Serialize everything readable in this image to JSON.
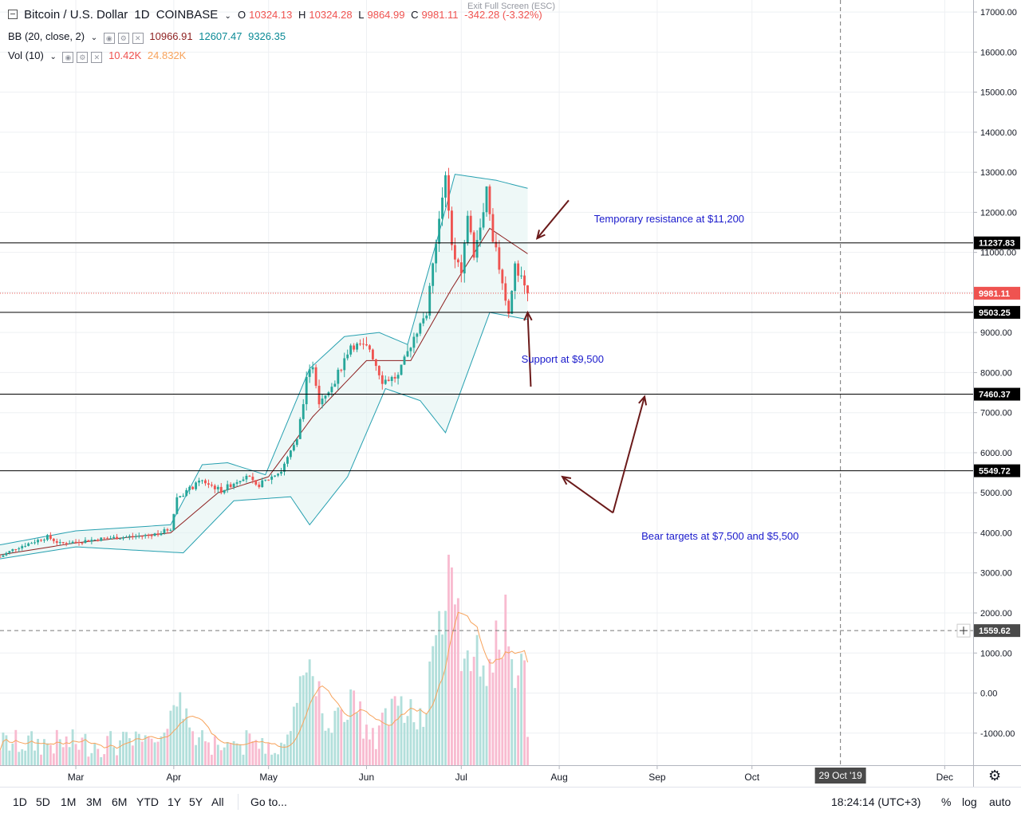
{
  "header": {
    "symbol_title": "Bitcoin / U.S. Dollar",
    "interval": "1D",
    "exchange": "COINBASE",
    "ohlc": [
      {
        "k": "O",
        "v": "10324.13"
      },
      {
        "k": "H",
        "v": "10324.28"
      },
      {
        "k": "L",
        "v": "9864.99"
      },
      {
        "k": "C",
        "v": "9981.11"
      }
    ],
    "change": "-342.28 (-3.32%)",
    "exit_fullscreen": "Exit Full Screen (ESC)"
  },
  "indicators": {
    "bb": {
      "name": "BB (20, close, 2)",
      "basis": "10966.91",
      "upper": "12607.47",
      "lower": "9326.35"
    },
    "vol": {
      "name": "Vol (10)",
      "value": "10.42K",
      "ma": "24.832K"
    }
  },
  "colors": {
    "up": "#26a69a",
    "down": "#ef5350",
    "up_vol": "#b2dfdb",
    "down_vol": "#f8bbd0",
    "bb_band": "#26a0b0",
    "bb_fill": "#e0f2f1",
    "bb_basis": "#8d1f1f",
    "vol_ma": "#f7a35c",
    "annotation": "#1a1acc",
    "arrow": "#6b1a1a"
  },
  "chart_data": {
    "type": "candlestick",
    "title": "Bitcoin / U.S. Dollar 1D COINBASE",
    "ylim": [
      -1800,
      17300
    ],
    "y_ticks": [
      17000,
      16000,
      15000,
      14000,
      13000,
      12000,
      11000,
      10000,
      9000,
      8000,
      7000,
      6000,
      5000,
      4000,
      3000,
      2000,
      1000,
      0,
      -1000
    ],
    "y_tick_labels": [
      "17000.00",
      "16000.00",
      "15000.00",
      "14000.00",
      "13000.00",
      "12000.00",
      "11000.00",
      "10000.00",
      "9000.00",
      "8000.00",
      "7000.00",
      "6000.00",
      "5000.00",
      "4000.00",
      "3000.00",
      "2000.00",
      "1000.00",
      "0.00",
      "-1000.00"
    ],
    "x_start": "2019-02-05",
    "x_end": "2019-12-10",
    "x_labels": [
      {
        "date": "2019-03-01",
        "label": "Mar"
      },
      {
        "date": "2019-04-01",
        "label": "Apr"
      },
      {
        "date": "2019-05-01",
        "label": "May"
      },
      {
        "date": "2019-06-01",
        "label": "Jun"
      },
      {
        "date": "2019-07-01",
        "label": "Jul"
      },
      {
        "date": "2019-08-01",
        "label": "Aug"
      },
      {
        "date": "2019-09-01",
        "label": "Sep"
      },
      {
        "date": "2019-10-01",
        "label": "Oct"
      },
      {
        "date": "2019-12-01",
        "label": "Dec"
      }
    ],
    "crosshair": {
      "date": "2019-10-29",
      "date_label": "29 Oct '19",
      "price": 1559.62,
      "price_label": "1559.62"
    },
    "price_marks": [
      {
        "value": 11237.83,
        "label": "11237.83"
      },
      {
        "value": 9503.25,
        "label": "9503.25"
      },
      {
        "value": 7460.37,
        "label": "7460.37"
      },
      {
        "value": 5549.72,
        "label": "5549.72"
      }
    ],
    "last_price": {
      "value": 9981.11,
      "label": "9981.11"
    },
    "annotations": [
      {
        "text": "Temporary resistance at $11,200",
        "date": "2019-08-12",
        "price": 11750
      },
      {
        "text": "Support at $9,500",
        "date": "2019-07-20",
        "price": 8250
      },
      {
        "text": "Bear targets at $7,500 and $5,500",
        "date": "2019-08-27",
        "price": 3830
      }
    ],
    "arrows": [
      {
        "from": [
          "2019-08-04",
          12300
        ],
        "to": [
          "2019-07-25",
          11350
        ]
      },
      {
        "from": [
          "2019-07-23",
          7650
        ],
        "to": [
          "2019-07-22",
          9500
        ]
      },
      {
        "from": [
          "2019-08-18",
          4500
        ],
        "to": [
          "2019-08-02",
          5400
        ]
      },
      {
        "from": [
          "2019-08-18",
          4500
        ],
        "to": [
          "2019-08-28",
          7400
        ]
      }
    ],
    "anchors": [
      {
        "date": "2019-02-05",
        "close": 3400
      },
      {
        "date": "2019-02-10",
        "close": 3620
      },
      {
        "date": "2019-02-20",
        "close": 3900
      },
      {
        "date": "2019-02-24",
        "close": 3730
      },
      {
        "date": "2019-03-10",
        "close": 3860
      },
      {
        "date": "2019-03-25",
        "close": 3940
      },
      {
        "date": "2019-03-31",
        "close": 4100
      },
      {
        "date": "2019-04-02",
        "close": 4880
      },
      {
        "date": "2019-04-10",
        "close": 5300
      },
      {
        "date": "2019-04-16",
        "close": 5050
      },
      {
        "date": "2019-04-24",
        "close": 5450
      },
      {
        "date": "2019-04-27",
        "close": 5150
      },
      {
        "date": "2019-05-05",
        "close": 5550
      },
      {
        "date": "2019-05-10",
        "close": 6300
      },
      {
        "date": "2019-05-13",
        "close": 7800
      },
      {
        "date": "2019-05-15",
        "close": 8200
      },
      {
        "date": "2019-05-17",
        "close": 7300
      },
      {
        "date": "2019-05-22",
        "close": 7800
      },
      {
        "date": "2019-05-27",
        "close": 8700
      },
      {
        "date": "2019-06-02",
        "close": 8600
      },
      {
        "date": "2019-06-06",
        "close": 7800
      },
      {
        "date": "2019-06-11",
        "close": 7900
      },
      {
        "date": "2019-06-16",
        "close": 8900
      },
      {
        "date": "2019-06-20",
        "close": 9500
      },
      {
        "date": "2019-06-22",
        "close": 10600
      },
      {
        "date": "2019-06-26",
        "close": 12900
      },
      {
        "date": "2019-06-28",
        "close": 11100
      },
      {
        "date": "2019-07-01",
        "close": 10600
      },
      {
        "date": "2019-07-03",
        "close": 11900
      },
      {
        "date": "2019-07-05",
        "close": 11000
      },
      {
        "date": "2019-07-09",
        "close": 12500
      },
      {
        "date": "2019-07-11",
        "close": 11400
      },
      {
        "date": "2019-07-14",
        "close": 10200
      },
      {
        "date": "2019-07-16",
        "close": 9400
      },
      {
        "date": "2019-07-18",
        "close": 10600
      },
      {
        "date": "2019-07-20",
        "close": 10500
      },
      {
        "date": "2019-07-22",
        "close": 9981
      }
    ],
    "bollinger": {
      "upper": [
        {
          "date": "2019-02-05",
          "value": 3700
        },
        {
          "date": "2019-03-01",
          "value": 4050
        },
        {
          "date": "2019-03-31",
          "value": 4200
        },
        {
          "date": "2019-04-10",
          "value": 5700
        },
        {
          "date": "2019-04-18",
          "value": 5750
        },
        {
          "date": "2019-04-30",
          "value": 5450
        },
        {
          "date": "2019-05-14",
          "value": 8100
        },
        {
          "date": "2019-05-25",
          "value": 8900
        },
        {
          "date": "2019-06-05",
          "value": 9000
        },
        {
          "date": "2019-06-14",
          "value": 8700
        },
        {
          "date": "2019-06-24",
          "value": 11500
        },
        {
          "date": "2019-06-29",
          "value": 12950
        },
        {
          "date": "2019-07-12",
          "value": 12800
        },
        {
          "date": "2019-07-22",
          "value": 12600
        }
      ],
      "basis": [
        {
          "date": "2019-02-05",
          "value": 3450
        },
        {
          "date": "2019-03-01",
          "value": 3750
        },
        {
          "date": "2019-03-31",
          "value": 4000
        },
        {
          "date": "2019-04-15",
          "value": 5000
        },
        {
          "date": "2019-05-01",
          "value": 5400
        },
        {
          "date": "2019-05-15",
          "value": 6900
        },
        {
          "date": "2019-06-01",
          "value": 8300
        },
        {
          "date": "2019-06-15",
          "value": 8300
        },
        {
          "date": "2019-06-28",
          "value": 10100
        },
        {
          "date": "2019-07-10",
          "value": 11600
        },
        {
          "date": "2019-07-22",
          "value": 10966
        }
      ],
      "lower": [
        {
          "date": "2019-02-05",
          "value": 3350
        },
        {
          "date": "2019-03-01",
          "value": 3650
        },
        {
          "date": "2019-04-04",
          "value": 3500
        },
        {
          "date": "2019-04-20",
          "value": 4800
        },
        {
          "date": "2019-05-08",
          "value": 4900
        },
        {
          "date": "2019-05-14",
          "value": 4200
        },
        {
          "date": "2019-05-26",
          "value": 5400
        },
        {
          "date": "2019-06-07",
          "value": 7600
        },
        {
          "date": "2019-06-18",
          "value": 7300
        },
        {
          "date": "2019-06-26",
          "value": 6500
        },
        {
          "date": "2019-07-10",
          "value": 9500
        },
        {
          "date": "2019-07-22",
          "value": 9326
        }
      ]
    },
    "volume": {
      "baseline": -1900,
      "scale_note": "volume bars drawn on the lower part of the same price scale",
      "peaks": [
        {
          "date": "2019-04-02",
          "value": 370
        },
        {
          "date": "2019-05-13",
          "value": 860
        },
        {
          "date": "2019-06-26",
          "value": 2860
        },
        {
          "date": "2019-07-03",
          "value": 600
        },
        {
          "date": "2019-07-15",
          "value": 580
        }
      ],
      "ma_peak": {
        "date": "2019-07-02",
        "value": 550
      }
    }
  },
  "price_axis_labels": {
    "marks": [
      "11237.83",
      "9981.11",
      "9503.25",
      "7460.37",
      "5549.72"
    ]
  },
  "time_axis": {
    "crosshair_label": "29 Oct '19"
  },
  "toolbar": {
    "timeframes": [
      "1D",
      "5D",
      "1M",
      "3M",
      "6M",
      "YTD",
      "1Y",
      "5Y",
      "All"
    ],
    "goto": "Go to...",
    "clock": "18:24:14 (UTC+3)",
    "percent": "%",
    "log": "log",
    "auto": "auto"
  }
}
